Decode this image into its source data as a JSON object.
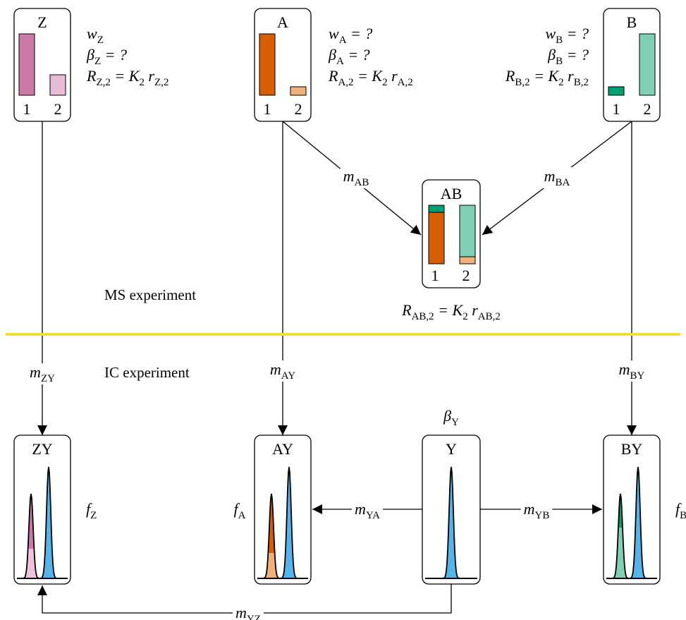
{
  "nodes": [
    {
      "label": "Z",
      "bar_labels": [
        "1",
        "2"
      ]
    },
    {
      "label": "A",
      "bar_labels": [
        "1",
        "2"
      ]
    },
    {
      "label": "B",
      "bar_labels": [
        "1",
        "2"
      ]
    },
    {
      "label": "AB",
      "bar_labels": [
        "1",
        "2"
      ]
    },
    {
      "label": "ZY"
    },
    {
      "label": "AY"
    },
    {
      "label": "Y"
    },
    {
      "label": "BY"
    }
  ],
  "sections": [
    "MS experiment",
    "IC experiment"
  ],
  "formulas": [
    [
      [
        "w",
        "Z"
      ]
    ],
    [
      [
        "β",
        "Z"
      ],
      [
        " = ?"
      ]
    ],
    [
      [
        "R",
        "Z,2"
      ],
      [
        " = K",
        "2"
      ],
      [
        " r",
        "Z,2"
      ]
    ],
    [
      [
        "w",
        "A"
      ],
      [
        " = ?"
      ]
    ],
    [
      [
        "β",
        "A"
      ],
      [
        " = ?"
      ]
    ],
    [
      [
        "R",
        "A,2"
      ],
      [
        " = K",
        "2"
      ],
      [
        " r",
        "A,2"
      ]
    ],
    [
      [
        "w",
        "B"
      ],
      [
        " = ?"
      ]
    ],
    [
      [
        "β",
        "B"
      ],
      [
        " = ?"
      ]
    ],
    [
      [
        "R",
        "B,2"
      ],
      [
        " = K",
        "2"
      ],
      [
        " r",
        "B,2"
      ]
    ],
    [
      [
        "R",
        "AB,2"
      ],
      [
        " = K",
        "2"
      ],
      [
        " r",
        "AB,2"
      ]
    ],
    [
      [
        "m",
        "AB"
      ]
    ],
    [
      [
        "m",
        "BA"
      ]
    ],
    [
      [
        "m",
        "ZY"
      ]
    ],
    [
      [
        "m",
        "AY"
      ]
    ],
    [
      [
        "m",
        "BY"
      ]
    ],
    [
      [
        "β",
        "Y"
      ]
    ],
    [
      [
        "f",
        "Z"
      ]
    ],
    [
      [
        "f",
        "A"
      ]
    ],
    [
      [
        "f",
        "B"
      ]
    ],
    [
      [
        "m",
        "YA"
      ]
    ],
    [
      [
        "m",
        "YB"
      ]
    ],
    [
      [
        "m",
        "YZ"
      ]
    ]
  ]
}
